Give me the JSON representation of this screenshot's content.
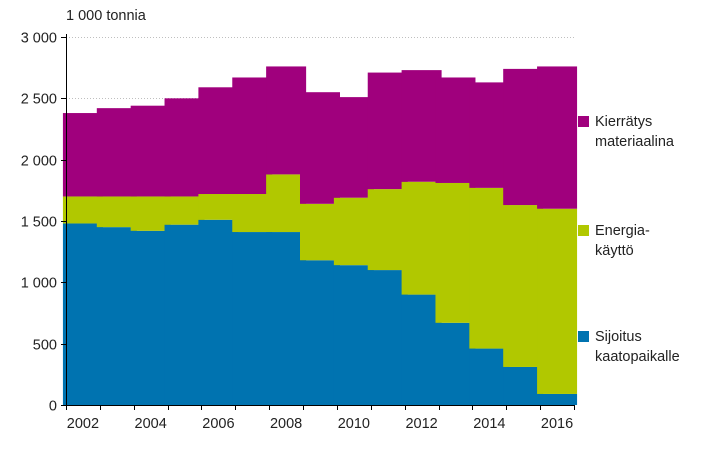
{
  "chart_data": {
    "type": "bar",
    "stacked": true,
    "unit_label": "1 000 tonnia",
    "categories": [
      "2002",
      "2003",
      "2004",
      "2005",
      "2006",
      "2007",
      "2008",
      "2009",
      "2010",
      "2011",
      "2012",
      "2013",
      "2014",
      "2015",
      "2016"
    ],
    "x_tick_labels": [
      "2002",
      "2004",
      "2006",
      "2008",
      "2010",
      "2012",
      "2014",
      "2016"
    ],
    "ylim": [
      0,
      3000
    ],
    "y_ticks": [
      0,
      500,
      1000,
      1500,
      2000,
      2500,
      3000
    ],
    "y_tick_labels": [
      "0",
      "500",
      "1 000",
      "1 500",
      "2 000",
      "2 500",
      "3 000"
    ],
    "grid": true,
    "legend_position": "right",
    "series": [
      {
        "name": "Sijoitus kaatopaikalle",
        "label_lines": "Sijoitus\nkaatopaikalle",
        "color": "#0073b0",
        "values": [
          1480,
          1450,
          1420,
          1470,
          1510,
          1410,
          1410,
          1180,
          1140,
          1100,
          900,
          670,
          460,
          310,
          90
        ]
      },
      {
        "name": "Energiakäyttö",
        "label_lines": "Energia-\nkäyttö",
        "color": "#b1c800",
        "values": [
          220,
          250,
          280,
          230,
          210,
          310,
          470,
          460,
          550,
          660,
          920,
          1140,
          1310,
          1320,
          1510
        ]
      },
      {
        "name": "Kierrätys materiaalina",
        "label_lines": "Kierrätys\nmateriaalina",
        "color": "#a0007d",
        "values": [
          680,
          720,
          740,
          800,
          870,
          950,
          880,
          910,
          820,
          950,
          910,
          860,
          860,
          1110,
          1160
        ]
      }
    ]
  }
}
